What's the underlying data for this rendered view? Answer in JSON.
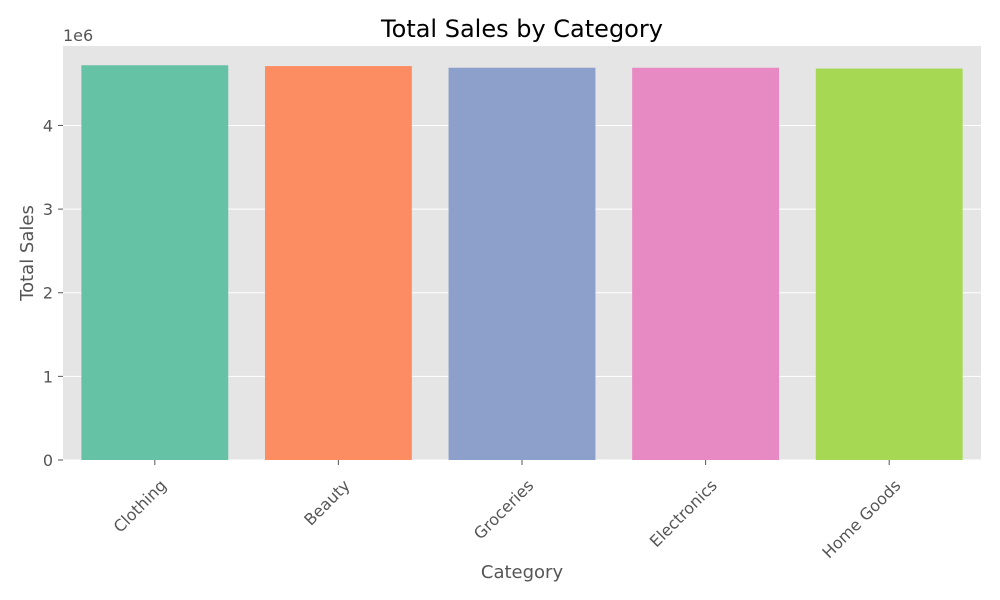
{
  "chart_data": {
    "type": "bar",
    "title": "Total Sales by Category",
    "xlabel": "Category",
    "ylabel": "Total Sales",
    "y_offset_label": "1e6",
    "categories": [
      "Clothing",
      "Beauty",
      "Groceries",
      "Electronics",
      "Home Goods"
    ],
    "values": [
      4720000,
      4710000,
      4690000,
      4690000,
      4680000
    ],
    "colors": [
      "#66c2a5",
      "#fc8d62",
      "#8da0cb",
      "#e78ac3",
      "#a6d854"
    ],
    "ylim": [
      0,
      4950000
    ],
    "yticks": [
      0,
      1,
      2,
      3,
      4
    ],
    "ytick_scale": 1000000,
    "grid": true,
    "background": "#e5e5e5",
    "gridline_color": "#ffffff"
  }
}
